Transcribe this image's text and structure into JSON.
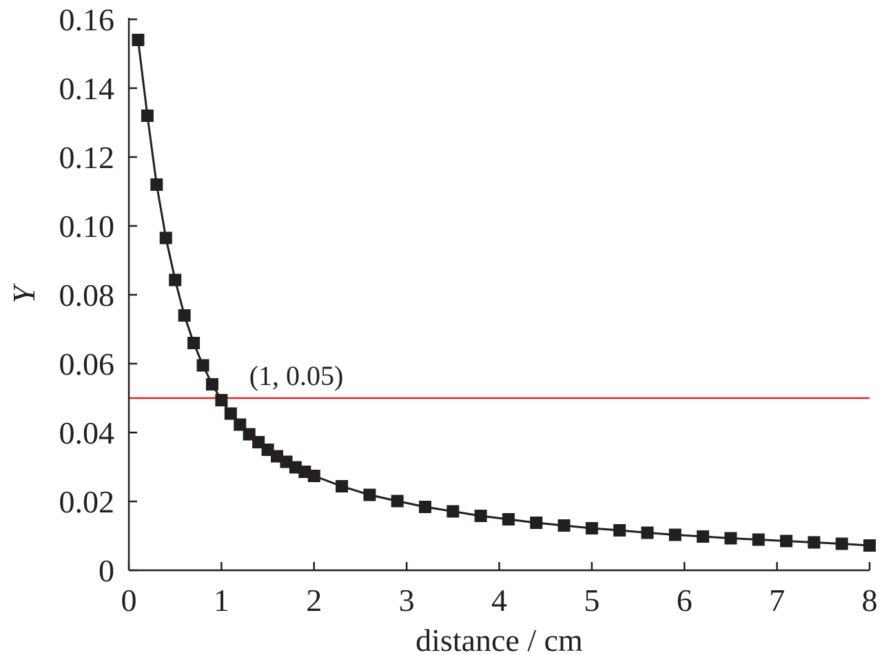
{
  "chart_data": {
    "type": "line",
    "title": "",
    "xlabel": "distance / cm",
    "ylabel": "Y",
    "xlim": [
      0,
      8
    ],
    "ylim": [
      0,
      0.16
    ],
    "x_ticks": [
      0,
      1,
      2,
      3,
      4,
      5,
      6,
      7,
      8
    ],
    "x_tick_labels": [
      "0",
      "1",
      "2",
      "3",
      "4",
      "5",
      "6",
      "7",
      "8"
    ],
    "y_ticks": [
      0,
      0.02,
      0.04,
      0.06,
      0.08,
      0.1,
      0.12,
      0.14,
      0.16
    ],
    "y_tick_labels": [
      "0",
      "0.02",
      "0.04",
      "0.06",
      "0.08",
      "0.10",
      "0.12",
      "0.14",
      "0.16"
    ],
    "grid": false,
    "series": [
      {
        "marker": "square",
        "color": "#231f20",
        "x": [
          0.1,
          0.2,
          0.3,
          0.4,
          0.5,
          0.6,
          0.7,
          0.8,
          0.9,
          1.0,
          1.1,
          1.2,
          1.3,
          1.4,
          1.5,
          1.6,
          1.7,
          1.8,
          1.9,
          2.0,
          2.3,
          2.6,
          2.9,
          3.2,
          3.5,
          3.8,
          4.1,
          4.4,
          4.7,
          5.0,
          5.3,
          5.6,
          5.9,
          6.2,
          6.5,
          6.8,
          7.1,
          7.4,
          7.7,
          8.0
        ],
        "y": [
          0.154,
          0.132,
          0.112,
          0.0965,
          0.0843,
          0.074,
          0.066,
          0.0595,
          0.054,
          0.0494,
          0.0455,
          0.0423,
          0.0395,
          0.0372,
          0.035,
          0.0331,
          0.0315,
          0.0299,
          0.0286,
          0.0274,
          0.0244,
          0.0219,
          0.0201,
          0.0184,
          0.0171,
          0.0158,
          0.0148,
          0.0138,
          0.013,
          0.0122,
          0.0116,
          0.0109,
          0.0103,
          0.0098,
          0.0093,
          0.0089,
          0.0085,
          0.0081,
          0.0077,
          0.0072
        ]
      }
    ],
    "reference_line": {
      "y": 0.05,
      "color": "#e0262b"
    },
    "annotations": [
      {
        "text": "(1, 0.05)",
        "x": 1.3,
        "y": 0.057
      }
    ]
  }
}
